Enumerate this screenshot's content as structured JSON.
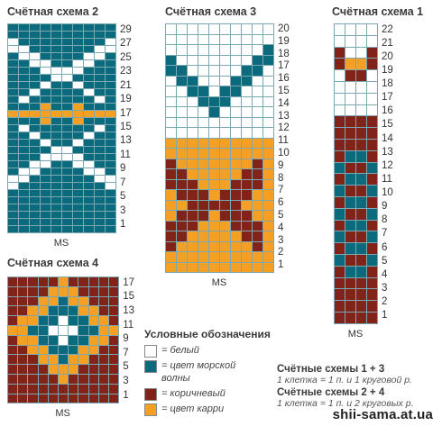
{
  "colors": {
    "white": "#ffffff",
    "teal": "#0b6a7c",
    "brown": "#82231a",
    "orange": "#f4a024",
    "gridline": "#7aa9b3"
  },
  "schemes": [
    {
      "id": "s2",
      "title": "Счётная схема 2",
      "ms_label": "MS",
      "rows": [
        "TTTTTTTTTT",
        "TTTTTTTTTT",
        "WTTTTTTTTW",
        "WWTTTTTTWW",
        "TWWTTTTWWT",
        "TTWWTTWWTT",
        "TTTWWWWTTT",
        "TTTTWWTTTT",
        "TTTWTTWTTT",
        "TTWTTTTWTT",
        "TWTTTTTTWT",
        "TTTOTTOTTT",
        "OOOOOOOOOO",
        "TTTOTTOTTT",
        "TWTTTTTTWT",
        "TTWTTTTWTT",
        "TTTWTTWTTT",
        "TTTTWWTTTT",
        "TTTWWWWTTT",
        "TTWWTTWWTT",
        "TWWTTTTWWT",
        "WWTTTTTTWW",
        "WTTTTTTTTW",
        "TTTTTTTTTT",
        "TTTTTTTTTT",
        "TTTTTTTTTT",
        "TTTTTTTTTT",
        "TTTTTTTTTT",
        "TTTTTTTTTT"
      ],
      "row_labels": [
        "29",
        "27",
        "25",
        "23",
        "21",
        "19",
        "17",
        "15",
        "13",
        "11",
        "9",
        "7",
        "5",
        "3",
        "1"
      ]
    },
    {
      "id": "s3",
      "title": "Счётная схема 3",
      "ms_label": "MS",
      "rows": [
        "WWWWWWWWWW",
        "WWWWWWWWWW",
        "WWWWWWWWWT",
        "TWWWWWWWTT",
        "TTWWWWWTTW",
        "WTTWWWTTWW",
        "WWTTWTTWWW",
        "WWWTTTWWWW",
        "WWWWTWWWWW",
        "WWWWWWWWWW",
        "WWWWWWWWWW",
        "OOOOOOOOOO",
        "OOOOOOOOOO",
        "BOOOOOOOBO",
        "BBOOOOOBBO",
        "BBBOOOBBBO",
        "OBBBOBBBOO",
        "OOBBBBBOOO",
        "OBBBOBBBOO",
        "BBBOOOBBBO",
        "BBOOOOOBBO",
        "BOOOOOOOBO",
        "OOOOOOOOOO",
        "OOOOOOOOOO"
      ],
      "row_labels": [
        "20",
        "19",
        "18",
        "17",
        "16",
        "15",
        "14",
        "13",
        "12",
        "11",
        "10",
        "9",
        "8",
        "7",
        "6",
        "5",
        "4",
        "3",
        "2",
        "1"
      ]
    },
    {
      "id": "s1",
      "title": "Счётная схема 1",
      "ms_label": "MS",
      "rows": [
        "WWWW",
        "WWWW",
        "BWWB",
        "BOOB",
        "WBBW",
        "WWWW",
        "WWWW",
        "WWWW",
        "BBBB",
        "BBBB",
        "BBBB",
        "BTTB",
        "TBBT",
        "BTTB",
        "TBBT",
        "BTTB",
        "TBBT",
        "BTTB",
        "TBBT",
        "BTTB",
        "TBBT",
        "BTTB",
        "BBBB",
        "BBBB",
        "BBBB",
        "BBBB"
      ],
      "row_labels": [
        "22",
        "21",
        "20",
        "19",
        "18",
        "17",
        "16",
        "15",
        "14",
        "13",
        "12",
        "11",
        "10",
        "9",
        "8",
        "7",
        "6",
        "5",
        "4",
        "3",
        "2",
        "1"
      ]
    },
    {
      "id": "s4",
      "title": "Счётная схема 4",
      "ms_label": "MS",
      "rows": [
        "BBBBBOBBBBB",
        "BBBBOOOBBBB",
        "BBBOOTOOBBB",
        "BBOOTTTOOBB",
        "BOOTTWTTOOB",
        "OOTTWWWTTOO",
        "BOOTTWTTOOB",
        "BBOOTTTOOBB",
        "BBBOOTOOBBB",
        "BBBBOOOBBBB",
        "BBBBBOBBBBB",
        "BBBBBBBBBBB",
        "BBBBBBBBBBB"
      ],
      "row_labels": [
        "17",
        "15",
        "13",
        "11",
        "9",
        "7",
        "5",
        "3",
        "1"
      ]
    }
  ],
  "legend": {
    "title": "Условные обозначения",
    "items": [
      {
        "label": "= белый",
        "color": "#ffffff"
      },
      {
        "label": "= цвет морской волны",
        "color": "#0b6a7c"
      },
      {
        "label": "= коричневый",
        "color": "#82231a"
      },
      {
        "label": "= цвет карри",
        "color": "#f4a024"
      }
    ]
  },
  "notes": [
    {
      "title": "Счётные схемы 1 + 3",
      "text": "1 клетка = 1 п. и 1 круговой р."
    },
    {
      "title": "Счётные схемы 2 + 4",
      "text": "1 клетка = 1 п. и 2 круговых р."
    }
  ],
  "watermark": "shii-sama.at.ua"
}
